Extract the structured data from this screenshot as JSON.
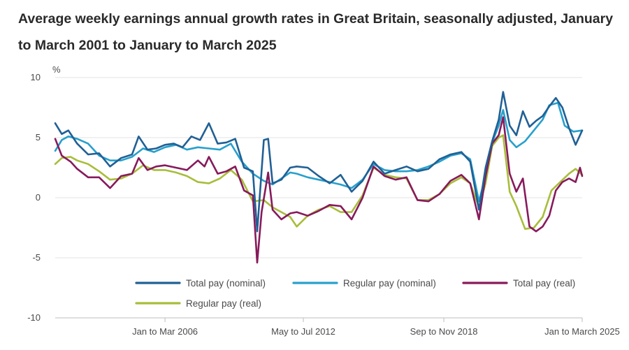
{
  "title": "Average weekly earnings annual growth rates in Great Britain, seasonally adjusted, January to March 2001 to January to March 2025",
  "chart_data": {
    "type": "line",
    "title": "Average weekly earnings annual growth rates in Great Britain, seasonally adjusted, January to March 2001 to January to March 2025",
    "ylabel": "%",
    "xlabel": "",
    "ylim": [
      -10,
      10
    ],
    "xlim": [
      2001.0,
      2025.0
    ],
    "grid": true,
    "legend": "bottom",
    "y_ticks": [
      {
        "value": 10,
        "label": "10"
      },
      {
        "value": 5,
        "label": "5"
      },
      {
        "value": 0,
        "label": "0"
      },
      {
        "value": -5,
        "label": "-5"
      },
      {
        "value": -10,
        "label": "-10"
      }
    ],
    "x_ticks": [
      {
        "value": 2006.0,
        "label": "Jan to Mar 2006"
      },
      {
        "value": 2012.3,
        "label": "May to Jul 2012"
      },
      {
        "value": 2018.7,
        "label": "Sep to Nov 2018"
      },
      {
        "value": 2025.0,
        "label": "Jan to March 2025"
      }
    ],
    "series": [
      {
        "name": "Total pay (nominal)",
        "color": "#206095",
        "points": [
          [
            2001.0,
            6.2
          ],
          [
            2001.3,
            5.3
          ],
          [
            2001.6,
            5.6
          ],
          [
            2002.0,
            4.5
          ],
          [
            2002.5,
            3.6
          ],
          [
            2003.0,
            3.7
          ],
          [
            2003.5,
            2.6
          ],
          [
            2004.0,
            3.3
          ],
          [
            2004.5,
            3.6
          ],
          [
            2004.8,
            5.1
          ],
          [
            2005.2,
            4.0
          ],
          [
            2005.6,
            4.1
          ],
          [
            2006.0,
            4.4
          ],
          [
            2006.4,
            4.5
          ],
          [
            2006.8,
            4.2
          ],
          [
            2007.2,
            5.1
          ],
          [
            2007.6,
            4.8
          ],
          [
            2008.0,
            6.2
          ],
          [
            2008.4,
            4.5
          ],
          [
            2008.8,
            4.6
          ],
          [
            2009.2,
            4.9
          ],
          [
            2009.6,
            2.5
          ],
          [
            2010.0,
            2.2
          ],
          [
            2010.2,
            -2.8
          ],
          [
            2010.5,
            4.8
          ],
          [
            2010.7,
            4.9
          ],
          [
            2010.9,
            1.2
          ],
          [
            2011.3,
            1.5
          ],
          [
            2011.7,
            2.5
          ],
          [
            2012.0,
            2.6
          ],
          [
            2012.5,
            2.5
          ],
          [
            2013.0,
            1.8
          ],
          [
            2013.5,
            1.2
          ],
          [
            2014.0,
            1.9
          ],
          [
            2014.5,
            0.5
          ],
          [
            2015.0,
            1.4
          ],
          [
            2015.5,
            3.0
          ],
          [
            2016.0,
            2.0
          ],
          [
            2016.5,
            2.3
          ],
          [
            2017.0,
            2.6
          ],
          [
            2017.5,
            2.2
          ],
          [
            2018.0,
            2.4
          ],
          [
            2018.5,
            3.2
          ],
          [
            2019.0,
            3.6
          ],
          [
            2019.5,
            3.8
          ],
          [
            2019.9,
            3.0
          ],
          [
            2020.3,
            -1.0
          ],
          [
            2020.6,
            2.5
          ],
          [
            2020.9,
            4.7
          ],
          [
            2021.2,
            6.5
          ],
          [
            2021.4,
            8.8
          ],
          [
            2021.7,
            6.0
          ],
          [
            2022.0,
            5.2
          ],
          [
            2022.3,
            7.2
          ],
          [
            2022.6,
            5.9
          ],
          [
            2022.9,
            6.4
          ],
          [
            2023.2,
            6.8
          ],
          [
            2023.5,
            7.6
          ],
          [
            2023.8,
            8.3
          ],
          [
            2024.1,
            7.5
          ],
          [
            2024.4,
            5.8
          ],
          [
            2024.7,
            4.4
          ],
          [
            2025.0,
            5.6
          ]
        ]
      },
      {
        "name": "Regular pay (nominal)",
        "color": "#27a0cc",
        "points": [
          [
            2001.0,
            3.9
          ],
          [
            2001.3,
            4.8
          ],
          [
            2001.6,
            5.1
          ],
          [
            2002.0,
            4.9
          ],
          [
            2002.5,
            4.5
          ],
          [
            2003.0,
            3.5
          ],
          [
            2003.5,
            3.1
          ],
          [
            2004.0,
            3.1
          ],
          [
            2004.5,
            3.4
          ],
          [
            2005.0,
            4.1
          ],
          [
            2005.5,
            3.8
          ],
          [
            2006.0,
            4.2
          ],
          [
            2006.5,
            4.4
          ],
          [
            2007.0,
            4.0
          ],
          [
            2007.5,
            4.2
          ],
          [
            2008.0,
            4.1
          ],
          [
            2008.5,
            4.0
          ],
          [
            2009.0,
            4.5
          ],
          [
            2009.5,
            3.0
          ],
          [
            2010.0,
            2.0
          ],
          [
            2010.5,
            1.4
          ],
          [
            2010.9,
            1.1
          ],
          [
            2011.3,
            1.6
          ],
          [
            2011.7,
            2.1
          ],
          [
            2012.0,
            2.0
          ],
          [
            2012.5,
            1.7
          ],
          [
            2013.0,
            1.5
          ],
          [
            2013.5,
            1.3
          ],
          [
            2014.0,
            1.1
          ],
          [
            2014.5,
            0.8
          ],
          [
            2015.0,
            1.5
          ],
          [
            2015.5,
            2.8
          ],
          [
            2016.0,
            2.3
          ],
          [
            2016.5,
            2.2
          ],
          [
            2017.0,
            2.2
          ],
          [
            2017.5,
            2.3
          ],
          [
            2018.0,
            2.6
          ],
          [
            2018.5,
            3.0
          ],
          [
            2019.0,
            3.5
          ],
          [
            2019.5,
            3.7
          ],
          [
            2019.9,
            3.2
          ],
          [
            2020.3,
            -0.3
          ],
          [
            2020.6,
            1.8
          ],
          [
            2020.9,
            4.6
          ],
          [
            2021.2,
            6.0
          ],
          [
            2021.4,
            7.3
          ],
          [
            2021.7,
            4.8
          ],
          [
            2022.0,
            4.2
          ],
          [
            2022.4,
            4.7
          ],
          [
            2022.8,
            5.6
          ],
          [
            2023.2,
            6.5
          ],
          [
            2023.5,
            7.7
          ],
          [
            2023.9,
            7.9
          ],
          [
            2024.2,
            6.0
          ],
          [
            2024.6,
            5.5
          ],
          [
            2025.0,
            5.6
          ]
        ]
      },
      {
        "name": "Total pay (real)",
        "color": "#871a5b",
        "points": [
          [
            2001.0,
            4.9
          ],
          [
            2001.3,
            3.5
          ],
          [
            2001.7,
            3.0
          ],
          [
            2002.0,
            2.4
          ],
          [
            2002.5,
            1.7
          ],
          [
            2003.0,
            1.7
          ],
          [
            2003.5,
            0.8
          ],
          [
            2004.0,
            1.8
          ],
          [
            2004.5,
            2.0
          ],
          [
            2004.8,
            3.3
          ],
          [
            2005.2,
            2.3
          ],
          [
            2005.6,
            2.6
          ],
          [
            2006.0,
            2.7
          ],
          [
            2006.5,
            2.5
          ],
          [
            2007.0,
            2.3
          ],
          [
            2007.5,
            3.1
          ],
          [
            2007.8,
            2.6
          ],
          [
            2008.0,
            3.4
          ],
          [
            2008.4,
            2.0
          ],
          [
            2008.8,
            2.2
          ],
          [
            2009.2,
            2.6
          ],
          [
            2009.6,
            0.6
          ],
          [
            2010.0,
            0.2
          ],
          [
            2010.2,
            -5.4
          ],
          [
            2010.4,
            -1.2
          ],
          [
            2010.7,
            2.1
          ],
          [
            2010.9,
            -1.0
          ],
          [
            2011.3,
            -1.8
          ],
          [
            2011.7,
            -1.3
          ],
          [
            2012.0,
            -1.2
          ],
          [
            2012.5,
            -1.5
          ],
          [
            2013.0,
            -1.1
          ],
          [
            2013.5,
            -0.6
          ],
          [
            2014.0,
            -0.7
          ],
          [
            2014.5,
            -1.8
          ],
          [
            2015.0,
            0.0
          ],
          [
            2015.5,
            2.6
          ],
          [
            2016.0,
            1.8
          ],
          [
            2016.5,
            1.5
          ],
          [
            2017.0,
            1.7
          ],
          [
            2017.5,
            -0.2
          ],
          [
            2018.0,
            -0.3
          ],
          [
            2018.5,
            0.3
          ],
          [
            2019.0,
            1.4
          ],
          [
            2019.5,
            1.9
          ],
          [
            2019.9,
            1.2
          ],
          [
            2020.3,
            -1.8
          ],
          [
            2020.6,
            1.8
          ],
          [
            2020.9,
            4.5
          ],
          [
            2021.2,
            5.2
          ],
          [
            2021.4,
            6.7
          ],
          [
            2021.7,
            2.0
          ],
          [
            2022.0,
            0.5
          ],
          [
            2022.3,
            1.6
          ],
          [
            2022.6,
            -2.4
          ],
          [
            2022.9,
            -2.8
          ],
          [
            2023.2,
            -2.4
          ],
          [
            2023.5,
            -1.5
          ],
          [
            2023.8,
            0.6
          ],
          [
            2024.1,
            1.3
          ],
          [
            2024.4,
            1.6
          ],
          [
            2024.7,
            1.3
          ],
          [
            2024.9,
            2.5
          ],
          [
            2025.0,
            1.8
          ]
        ]
      },
      {
        "name": "Regular pay (real)",
        "color": "#a8bd3a",
        "points": [
          [
            2001.0,
            2.8
          ],
          [
            2001.3,
            3.3
          ],
          [
            2001.7,
            3.4
          ],
          [
            2002.0,
            3.1
          ],
          [
            2002.5,
            2.8
          ],
          [
            2003.0,
            2.2
          ],
          [
            2003.5,
            1.5
          ],
          [
            2004.0,
            1.6
          ],
          [
            2004.5,
            2.0
          ],
          [
            2005.0,
            2.7
          ],
          [
            2005.5,
            2.3
          ],
          [
            2006.0,
            2.3
          ],
          [
            2006.5,
            2.1
          ],
          [
            2007.0,
            1.8
          ],
          [
            2007.5,
            1.3
          ],
          [
            2008.0,
            1.2
          ],
          [
            2008.5,
            1.6
          ],
          [
            2009.0,
            2.3
          ],
          [
            2009.5,
            1.5
          ],
          [
            2010.0,
            -0.3
          ],
          [
            2010.5,
            -0.2
          ],
          [
            2010.9,
            -0.8
          ],
          [
            2011.3,
            -1.2
          ],
          [
            2011.7,
            -1.6
          ],
          [
            2012.0,
            -2.4
          ],
          [
            2012.5,
            -1.5
          ],
          [
            2013.0,
            -1.0
          ],
          [
            2013.5,
            -0.7
          ],
          [
            2014.0,
            -1.2
          ],
          [
            2014.5,
            -1.2
          ],
          [
            2015.0,
            0.2
          ],
          [
            2015.5,
            2.5
          ],
          [
            2016.0,
            1.9
          ],
          [
            2016.5,
            1.7
          ],
          [
            2017.0,
            1.6
          ],
          [
            2017.5,
            -0.2
          ],
          [
            2018.0,
            -0.2
          ],
          [
            2018.5,
            0.3
          ],
          [
            2019.0,
            1.2
          ],
          [
            2019.5,
            1.7
          ],
          [
            2019.9,
            1.2
          ],
          [
            2020.3,
            -0.8
          ],
          [
            2020.6,
            1.2
          ],
          [
            2020.9,
            4.3
          ],
          [
            2021.2,
            5.0
          ],
          [
            2021.4,
            5.2
          ],
          [
            2021.7,
            0.5
          ],
          [
            2022.0,
            -0.7
          ],
          [
            2022.4,
            -2.6
          ],
          [
            2022.8,
            -2.5
          ],
          [
            2023.2,
            -1.6
          ],
          [
            2023.6,
            0.6
          ],
          [
            2024.0,
            1.3
          ],
          [
            2024.4,
            2.0
          ],
          [
            2024.7,
            2.4
          ],
          [
            2025.0,
            1.9
          ]
        ]
      }
    ]
  }
}
